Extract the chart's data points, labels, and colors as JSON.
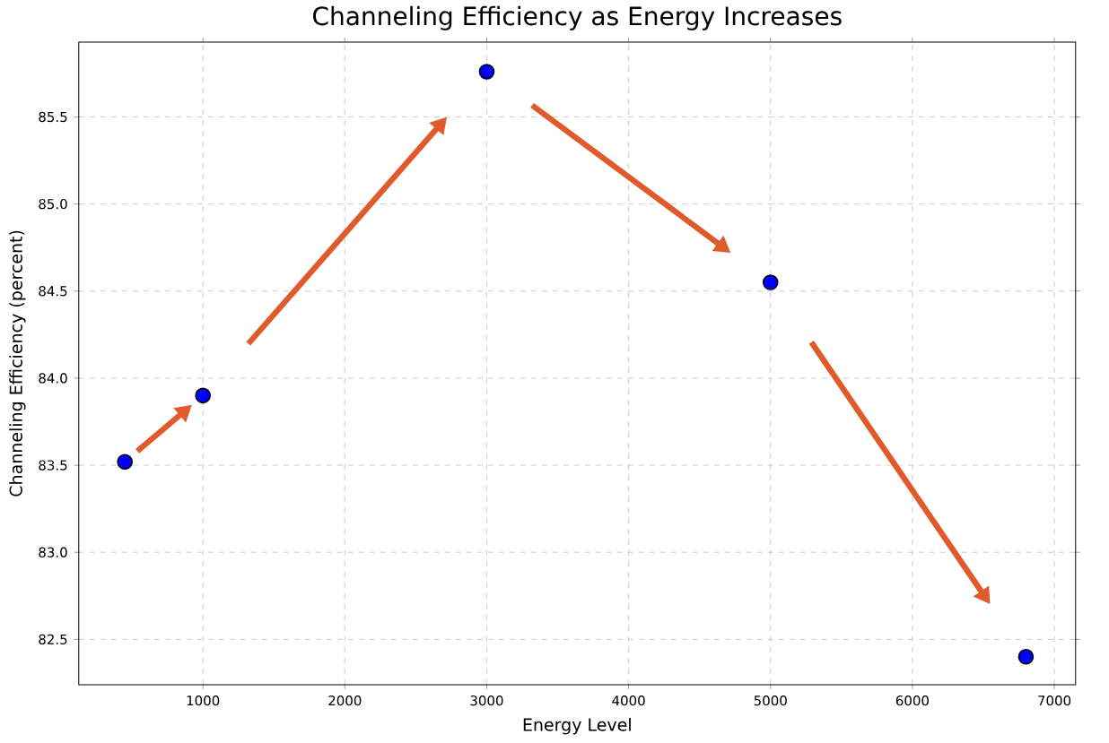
{
  "chart_data": {
    "type": "scatter",
    "title": "Channeling Efficiency as Energy Increases",
    "xlabel": "Energy Level",
    "ylabel": "Channeling Efficiency (percent)",
    "x": [
      450,
      1000,
      3000,
      5000,
      6800
    ],
    "series": [
      {
        "color": "#0000ff",
        "values": [
          83.52,
          83.9,
          85.76,
          84.55,
          82.4
        ]
      }
    ],
    "marker": "circle",
    "grid": true,
    "xlim": [
      125,
      7150
    ],
    "ylim": [
      82.24,
      85.93
    ],
    "xticks": [
      1000,
      2000,
      3000,
      4000,
      5000,
      6000,
      7000
    ],
    "yticks": [
      82.5,
      {
        "value": 83.0,
        "label": "83.0"
      },
      83.5,
      {
        "value": 84.0,
        "label": "84.0"
      },
      84.5,
      {
        "value": 85.0,
        "label": "85.0"
      },
      85.5
    ]
  }
}
